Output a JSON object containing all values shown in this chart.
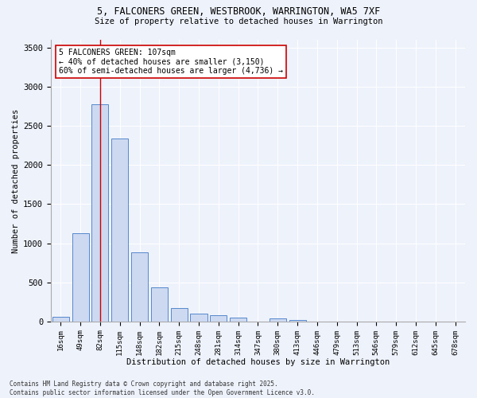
{
  "title_line1": "5, FALCONERS GREEN, WESTBROOK, WARRINGTON, WA5 7XF",
  "title_line2": "Size of property relative to detached houses in Warrington",
  "xlabel": "Distribution of detached houses by size in Warrington",
  "ylabel": "Number of detached properties",
  "bar_color": "#ccd9f0",
  "bar_edge_color": "#5588cc",
  "background_color": "#eef2fb",
  "grid_color": "#ffffff",
  "categories": [
    "16sqm",
    "49sqm",
    "82sqm",
    "115sqm",
    "148sqm",
    "182sqm",
    "215sqm",
    "248sqm",
    "281sqm",
    "314sqm",
    "347sqm",
    "380sqm",
    "413sqm",
    "446sqm",
    "479sqm",
    "513sqm",
    "546sqm",
    "579sqm",
    "612sqm",
    "645sqm",
    "678sqm"
  ],
  "values": [
    55,
    1130,
    2780,
    2340,
    880,
    440,
    170,
    100,
    75,
    50,
    0,
    35,
    20,
    0,
    0,
    0,
    0,
    0,
    0,
    0,
    0
  ],
  "ylim": [
    0,
    3600
  ],
  "yticks": [
    0,
    500,
    1000,
    1500,
    2000,
    2500,
    3000,
    3500
  ],
  "vline_x_index": 2,
  "vline_color": "#cc0000",
  "annotation_title": "5 FALCONERS GREEN: 107sqm",
  "annotation_line1": "← 40% of detached houses are smaller (3,150)",
  "annotation_line2": "60% of semi-detached houses are larger (4,736) →",
  "annotation_box_facecolor": "#ffffff",
  "annotation_box_edgecolor": "#cc0000",
  "footnote1": "Contains HM Land Registry data © Crown copyright and database right 2025.",
  "footnote2": "Contains public sector information licensed under the Open Government Licence v3.0."
}
